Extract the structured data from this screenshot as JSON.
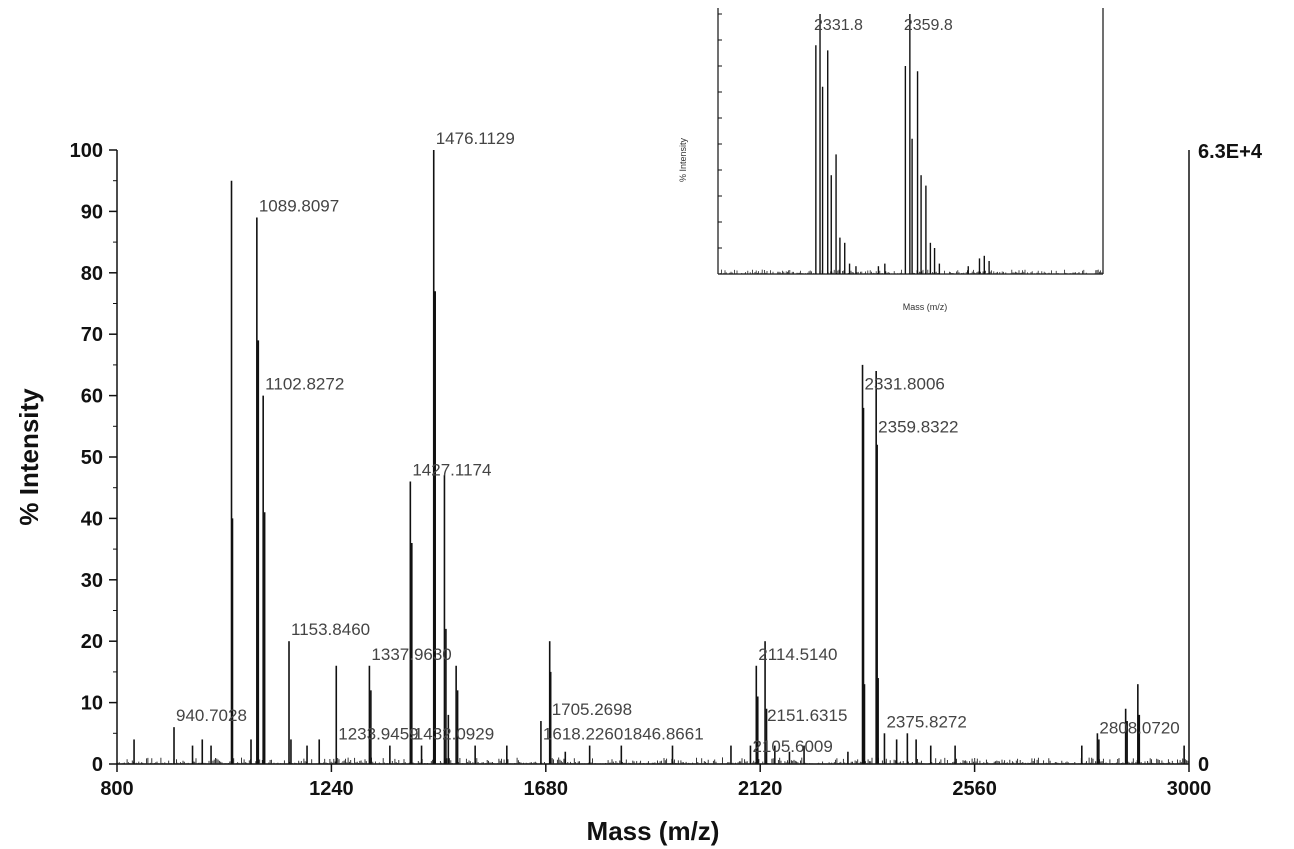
{
  "chart_data": [
    {
      "type": "line",
      "xlabel": "Mass (m/z)",
      "ylabel": "% Intensity",
      "xlim": [
        800,
        3000
      ],
      "ylim": [
        0,
        100
      ],
      "x_ticks": [
        800,
        1240,
        1680,
        2120,
        2560,
        3000
      ],
      "y_ticks": [
        0,
        10,
        20,
        30,
        40,
        50,
        60,
        70,
        80,
        90,
        100
      ],
      "right_axis_labels": {
        "top": "6.3E+4",
        "bottom": "0"
      },
      "grid": false,
      "peaks": [
        {
          "x": 835,
          "y": 4
        },
        {
          "x": 917,
          "y": 6
        },
        {
          "x": 955,
          "y": 3
        },
        {
          "x": 975,
          "y": 4
        },
        {
          "x": 993,
          "y": 3
        },
        {
          "x": 1035,
          "y": 95
        },
        {
          "x": 1037,
          "y": 40
        },
        {
          "x": 1075,
          "y": 4
        },
        {
          "x": 1087,
          "y": 89
        },
        {
          "x": 1090,
          "y": 69
        },
        {
          "x": 1100,
          "y": 60
        },
        {
          "x": 1103,
          "y": 41
        },
        {
          "x": 1153,
          "y": 20
        },
        {
          "x": 1157,
          "y": 4
        },
        {
          "x": 1190,
          "y": 3
        },
        {
          "x": 1215,
          "y": 4
        },
        {
          "x": 1250,
          "y": 16
        },
        {
          "x": 1318,
          "y": 16
        },
        {
          "x": 1321,
          "y": 12
        },
        {
          "x": 1360,
          "y": 3
        },
        {
          "x": 1402,
          "y": 46
        },
        {
          "x": 1405,
          "y": 36
        },
        {
          "x": 1425,
          "y": 3
        },
        {
          "x": 1450,
          "y": 100
        },
        {
          "x": 1453,
          "y": 77
        },
        {
          "x": 1472,
          "y": 47
        },
        {
          "x": 1475,
          "y": 22
        },
        {
          "x": 1480,
          "y": 8
        },
        {
          "x": 1496,
          "y": 16
        },
        {
          "x": 1499,
          "y": 12
        },
        {
          "x": 1535,
          "y": 3
        },
        {
          "x": 1600,
          "y": 3
        },
        {
          "x": 1670,
          "y": 7
        },
        {
          "x": 1688,
          "y": 20
        },
        {
          "x": 1690,
          "y": 15
        },
        {
          "x": 1720,
          "y": 2
        },
        {
          "x": 1770,
          "y": 3
        },
        {
          "x": 1835,
          "y": 3
        },
        {
          "x": 1940,
          "y": 3
        },
        {
          "x": 2060,
          "y": 3
        },
        {
          "x": 2100,
          "y": 3
        },
        {
          "x": 2112,
          "y": 16
        },
        {
          "x": 2115,
          "y": 11
        },
        {
          "x": 2130,
          "y": 20
        },
        {
          "x": 2133,
          "y": 9
        },
        {
          "x": 2150,
          "y": 3
        },
        {
          "x": 2180,
          "y": 2
        },
        {
          "x": 2210,
          "y": 3
        },
        {
          "x": 2300,
          "y": 2
        },
        {
          "x": 2330,
          "y": 65
        },
        {
          "x": 2332,
          "y": 58
        },
        {
          "x": 2334,
          "y": 13
        },
        {
          "x": 2358,
          "y": 64
        },
        {
          "x": 2360,
          "y": 52
        },
        {
          "x": 2362,
          "y": 14
        },
        {
          "x": 2375,
          "y": 5
        },
        {
          "x": 2400,
          "y": 4
        },
        {
          "x": 2422,
          "y": 5
        },
        {
          "x": 2440,
          "y": 4
        },
        {
          "x": 2470,
          "y": 3
        },
        {
          "x": 2520,
          "y": 3
        },
        {
          "x": 2780,
          "y": 3
        },
        {
          "x": 2812,
          "y": 5
        },
        {
          "x": 2815,
          "y": 4
        },
        {
          "x": 2870,
          "y": 9
        },
        {
          "x": 2873,
          "y": 7
        },
        {
          "x": 2895,
          "y": 13
        },
        {
          "x": 2898,
          "y": 8
        },
        {
          "x": 2990,
          "y": 3
        }
      ],
      "annotations": [
        {
          "text": "1476.1129",
          "x": 1450,
          "y": 100
        },
        {
          "text": "1089.8097",
          "x": 1087,
          "y": 89
        },
        {
          "text": "1102.8272",
          "x": 1100,
          "y": 60
        },
        {
          "text": "1427.1174",
          "x": 1402,
          "y": 46
        },
        {
          "text": "1153.8460",
          "x": 1153,
          "y": 20
        },
        {
          "text": "1337.9630",
          "x": 1318,
          "y": 16
        },
        {
          "text": "940.7028",
          "x": 917,
          "y": 6
        },
        {
          "text": "1233.9459",
          "x": 1250,
          "y": 3
        },
        {
          "text": "1432.0929",
          "x": 1405,
          "y": 3
        },
        {
          "text": "1705.2698",
          "x": 1688,
          "y": 7
        },
        {
          "text": "1618.2260",
          "x": 1670,
          "y": 3
        },
        {
          "text": "1846.8661",
          "x": 1835,
          "y": 3
        },
        {
          "text": "2114.5140",
          "x": 2112,
          "y": 16
        },
        {
          "text": "2151.6315",
          "x": 2130,
          "y": 6
        },
        {
          "text": "2105.6009",
          "x": 2100,
          "y": 1
        },
        {
          "text": "2331.8006",
          "x": 2330,
          "y": 60
        },
        {
          "text": "2359.8322",
          "x": 2358,
          "y": 53
        },
        {
          "text": "2375.8272",
          "x": 2375,
          "y": 5
        },
        {
          "text": "2808.0720",
          "x": 2812,
          "y": 4
        }
      ]
    },
    {
      "type": "line",
      "xlabel": "Mass (m/z)",
      "ylabel": "% Intensity",
      "xlim": [
        2300,
        2420
      ],
      "ylim": [
        0,
        100
      ],
      "grid": false,
      "peaks": [
        {
          "x": 2330.5,
          "y": 88
        },
        {
          "x": 2331.8,
          "y": 100
        },
        {
          "x": 2332.6,
          "y": 72
        },
        {
          "x": 2334.2,
          "y": 86
        },
        {
          "x": 2335.3,
          "y": 38
        },
        {
          "x": 2336.8,
          "y": 46
        },
        {
          "x": 2338.0,
          "y": 14
        },
        {
          "x": 2339.5,
          "y": 12
        },
        {
          "x": 2341,
          "y": 4
        },
        {
          "x": 2343,
          "y": 3
        },
        {
          "x": 2350,
          "y": 3
        },
        {
          "x": 2352,
          "y": 4
        },
        {
          "x": 2358.4,
          "y": 80
        },
        {
          "x": 2359.8,
          "y": 100
        },
        {
          "x": 2360.5,
          "y": 52
        },
        {
          "x": 2362.2,
          "y": 78
        },
        {
          "x": 2363.3,
          "y": 38
        },
        {
          "x": 2364.8,
          "y": 34
        },
        {
          "x": 2366.2,
          "y": 12
        },
        {
          "x": 2367.5,
          "y": 10
        },
        {
          "x": 2369,
          "y": 4
        },
        {
          "x": 2378,
          "y": 3
        },
        {
          "x": 2381.5,
          "y": 6
        },
        {
          "x": 2383,
          "y": 7
        },
        {
          "x": 2384.5,
          "y": 5
        }
      ],
      "annotations": [
        {
          "text": "2331.8",
          "x": 2331.8,
          "y": 100
        },
        {
          "text": "2359.8",
          "x": 2359.8,
          "y": 100
        }
      ]
    }
  ]
}
